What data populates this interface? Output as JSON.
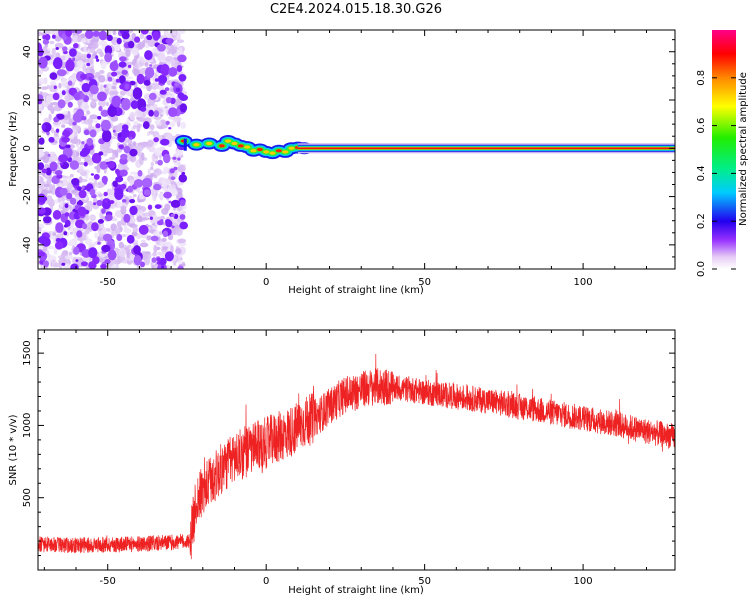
{
  "page_title": "C2E4.2024.015.18.30.G26",
  "chart_data": [
    {
      "type": "heatmap",
      "title": "C2E4.2024.015.18.30.G26",
      "xlabel": "Height of straight line (km)",
      "ylabel": "Frequency (Hz)",
      "xlim": [
        -72,
        129
      ],
      "ylim": [
        -50,
        49
      ],
      "xticks": [
        -50,
        0,
        50,
        100
      ],
      "xtick_labels": [
        "-50",
        "0",
        "50",
        "100"
      ],
      "yticks": [
        -40,
        -20,
        0,
        20,
        40
      ],
      "ytick_labels": [
        "-40",
        "-20",
        "0",
        "20",
        "40"
      ],
      "noise_region_x": [
        -72,
        -26
      ],
      "signal_start_x": -26,
      "signal_end_x": 129,
      "signal_frequency_hz": 0,
      "colorbar": {
        "label": "Normalized spectral amplitude",
        "range": [
          0.0,
          1.0
        ],
        "ticks": [
          0.0,
          0.2,
          0.4,
          0.6,
          0.8
        ],
        "tick_labels": [
          "0.0",
          "0.2",
          "0.4",
          "0.6",
          "0.8"
        ]
      }
    },
    {
      "type": "line",
      "xlabel": "Height of straight line (km)",
      "ylabel": "SNR (10 * v/v)",
      "xlim": [
        -72,
        129
      ],
      "ylim": [
        0,
        1660
      ],
      "xticks": [
        -50,
        0,
        50,
        100
      ],
      "xtick_labels": [
        "-50",
        "0",
        "50",
        "100"
      ],
      "yticks": [
        500,
        1000,
        1500
      ],
      "ytick_labels": [
        "500",
        "1000",
        "1500"
      ],
      "series": [
        {
          "name": "SNR",
          "color": "#ee2222",
          "x": [
            -72,
            -60,
            -50,
            -40,
            -30,
            -24,
            -22,
            -18,
            -14,
            -10,
            -6,
            -2,
            0,
            4,
            8,
            12,
            16,
            20,
            24,
            28,
            32,
            36,
            40,
            45,
            50,
            60,
            70,
            80,
            90,
            100,
            110,
            120,
            129
          ],
          "y": [
            180,
            170,
            175,
            180,
            190,
            200,
            480,
            600,
            700,
            780,
            820,
            860,
            880,
            920,
            960,
            1020,
            1060,
            1130,
            1200,
            1230,
            1260,
            1270,
            1260,
            1250,
            1230,
            1200,
            1170,
            1130,
            1090,
            1050,
            1010,
            960,
            920
          ]
        }
      ]
    }
  ]
}
